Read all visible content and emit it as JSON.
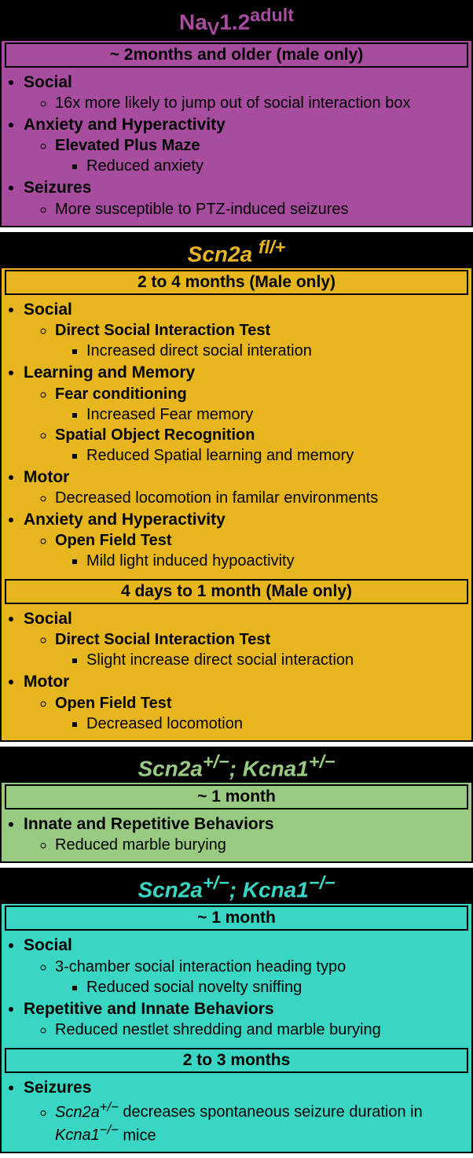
{
  "panels": [
    {
      "id": "nav12",
      "bg": "#a84ca0",
      "title_color": "#a84ca0",
      "title_html": "Na<sub>V</sub>1.2<sup>adult</sup>",
      "title_style": "normal",
      "ages": [
        {
          "label": "~ 2months and older (male only)",
          "items": [
            {
              "t": "Social",
              "sub": [
                {
                  "t": "16x more likely to jump out of social interaction box"
                }
              ]
            },
            {
              "t": "Anxiety and Hyperactivity",
              "sub": [
                {
                  "t": "Elevated Plus Maze",
                  "bold": true,
                  "sub": [
                    {
                      "t": "Reduced anxiety"
                    }
                  ]
                }
              ]
            },
            {
              "t": "Seizures",
              "sub": [
                {
                  "t": "More susceptible to PTZ-induced seizures"
                }
              ]
            }
          ]
        }
      ]
    },
    {
      "id": "scn2a-fl",
      "bg": "#e7b51e",
      "title_color": "#e7b51e",
      "title_html": "Scn2a <sup>fl/+</sup>",
      "title_style": "italic",
      "ages": [
        {
          "label": "2 to 4 months (Male only)",
          "items": [
            {
              "t": "Social",
              "sub": [
                {
                  "t": "Direct Social Interaction Test",
                  "bold": true,
                  "sub": [
                    {
                      "t": "Increased direct social interation"
                    }
                  ]
                }
              ]
            },
            {
              "t": "Learning and Memory",
              "sub": [
                {
                  "t": "Fear conditioning",
                  "bold": true,
                  "sub": [
                    {
                      "t": "Increased Fear memory"
                    }
                  ]
                },
                {
                  "t": "Spatial Object Recognition",
                  "bold": true,
                  "sub": [
                    {
                      "t": "Reduced Spatial learning and memory"
                    }
                  ]
                }
              ]
            },
            {
              "t": "Motor",
              "sub": [
                {
                  "t": "Decreased locomotion in familar environments"
                }
              ]
            },
            {
              "t": "Anxiety and Hyperactivity",
              "sub": [
                {
                  "t": "Open Field Test",
                  "bold": true,
                  "sub": [
                    {
                      "t": "Mild light induced hypoactivity"
                    }
                  ]
                }
              ]
            }
          ]
        },
        {
          "label": "4 days to 1 month (Male only)",
          "items": [
            {
              "t": "Social",
              "sub": [
                {
                  "t": "Direct Social Interaction Test",
                  "bold": true,
                  "sub": [
                    {
                      "t": "Slight increase direct social interaction"
                    }
                  ]
                }
              ]
            },
            {
              "t": "Motor",
              "sub": [
                {
                  "t": "Open Field Test",
                  "bold": true,
                  "sub": [
                    {
                      "t": "Decreased locomotion"
                    }
                  ]
                }
              ]
            }
          ]
        }
      ]
    },
    {
      "id": "scn2a-kcna1-het",
      "bg": "#98ca82",
      "title_color": "#98ca82",
      "title_html": "Scn2a<sup>+/−</sup>; Kcna1<sup>+/−</sup>",
      "title_style": "italic",
      "ages": [
        {
          "label": "~ 1 month",
          "items": [
            {
              "t": "Innate and Repetitive Behaviors",
              "sub": [
                {
                  "t": "Reduced marble burying"
                }
              ]
            }
          ]
        }
      ]
    },
    {
      "id": "scn2a-kcna1-ko",
      "bg": "#38d6c3",
      "title_color": "#38d6c3",
      "title_html": "Scn2a<sup>+/−</sup>; Kcna1<sup>−/−</sup>",
      "title_style": "italic",
      "ages": [
        {
          "label": "~ 1 month",
          "items": [
            {
              "t": "Social",
              "sub": [
                {
                  "t": "3-chamber social interaction heading typo",
                  "sub": [
                    {
                      "t": "Reduced social novelty sniffing"
                    }
                  ]
                }
              ]
            },
            {
              "t": "Repetitive and Innate Behaviors",
              "sub": [
                {
                  "t": "Reduced nestlet shredding and marble burying"
                }
              ]
            }
          ]
        },
        {
          "label": "2 to 3 months",
          "items": [
            {
              "t": "Seizures",
              "sub": [
                {
                  "html": "<span class='ital'>Scn2a<sup>+/−</sup></span> decreases spontaneous seizure duration in <span class='ital'>Kcna1<sup>−/−</sup></span> mice"
                }
              ]
            }
          ]
        }
      ]
    }
  ]
}
